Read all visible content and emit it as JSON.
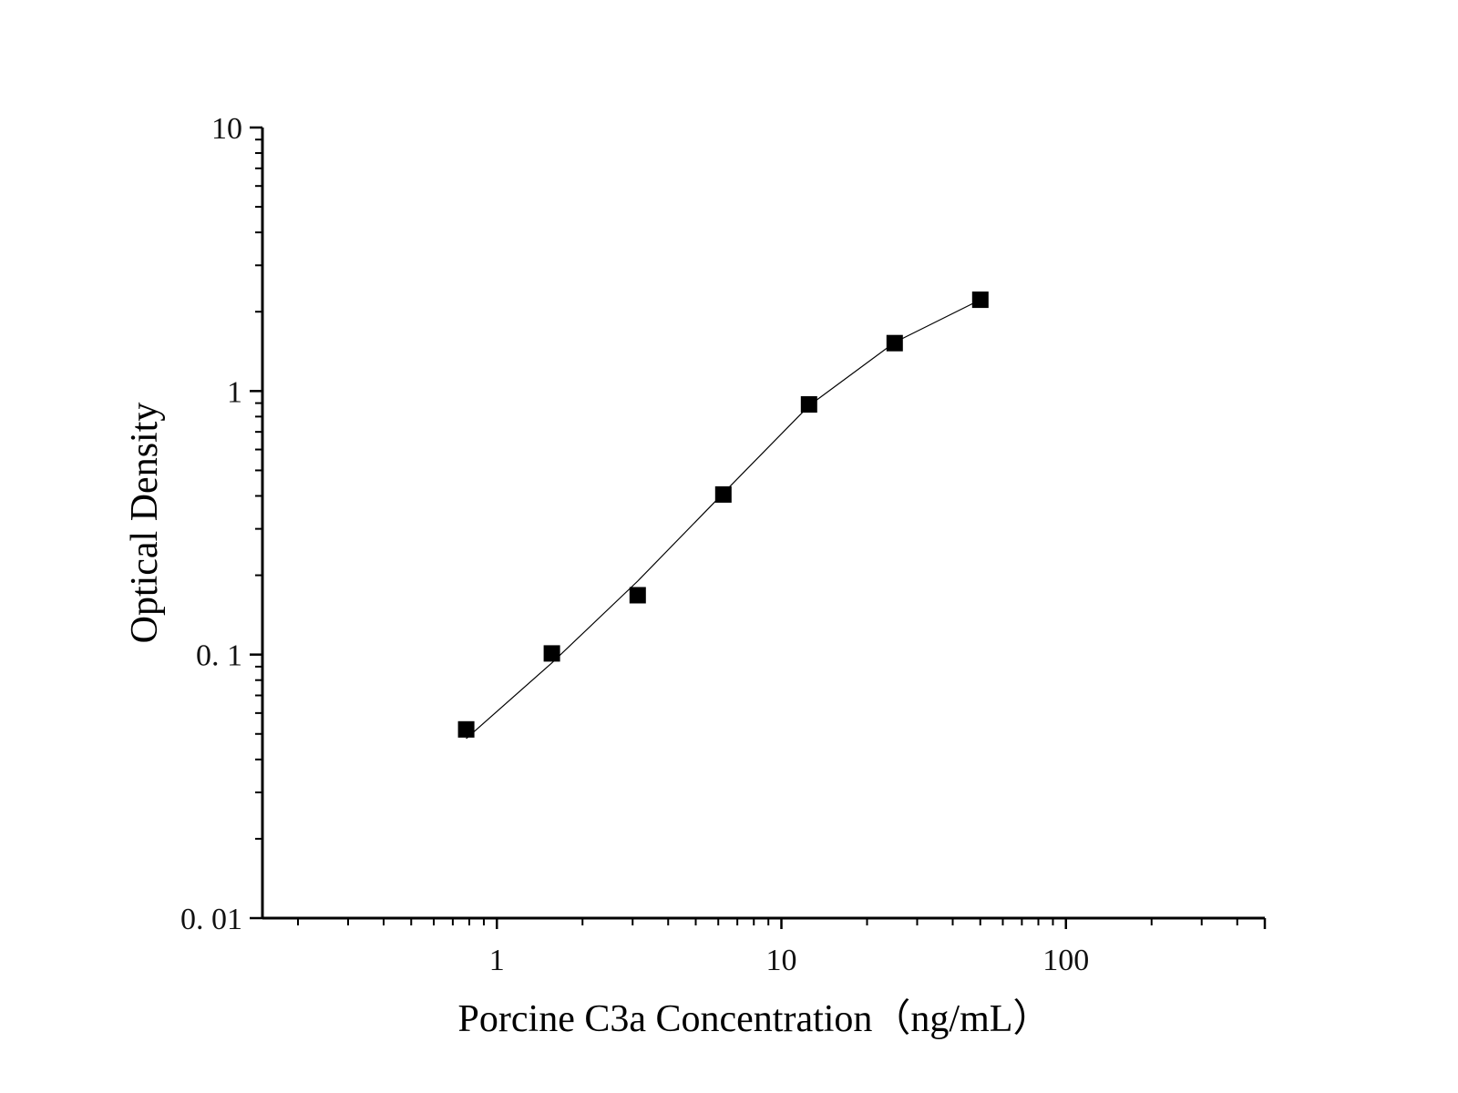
{
  "chart_data": {
    "type": "scatter",
    "title": "",
    "xlabel": "Porcine C3a Concentration（ng/mL）",
    "ylabel": "Optical Density",
    "x_scale": "log",
    "y_scale": "log",
    "xlim": [
      0.15,
      500
    ],
    "ylim": [
      0.01,
      10
    ],
    "grid": false,
    "legend": "none",
    "x_ticks": [
      {
        "value": 1,
        "label": "1"
      },
      {
        "value": 10,
        "label": "10"
      },
      {
        "value": 100,
        "label": "100"
      }
    ],
    "y_ticks": [
      {
        "value": 0.01,
        "label": "0. 01"
      },
      {
        "value": 0.1,
        "label": "0. 1"
      },
      {
        "value": 1,
        "label": "1"
      },
      {
        "value": 10,
        "label": "10"
      }
    ],
    "series": [
      {
        "marker": "square",
        "color": "#000000",
        "x": [
          0.78,
          1.56,
          3.125,
          6.25,
          12.5,
          25,
          50
        ],
        "y": [
          0.052,
          0.101,
          0.168,
          0.405,
          0.89,
          1.52,
          2.22
        ]
      }
    ],
    "fit_curve": {
      "color": "#000000",
      "x": [
        0.78,
        1.56,
        3.125,
        6.25,
        12.5,
        25,
        50
      ],
      "y": [
        0.048,
        0.093,
        0.19,
        0.41,
        0.88,
        1.53,
        2.22
      ]
    }
  }
}
